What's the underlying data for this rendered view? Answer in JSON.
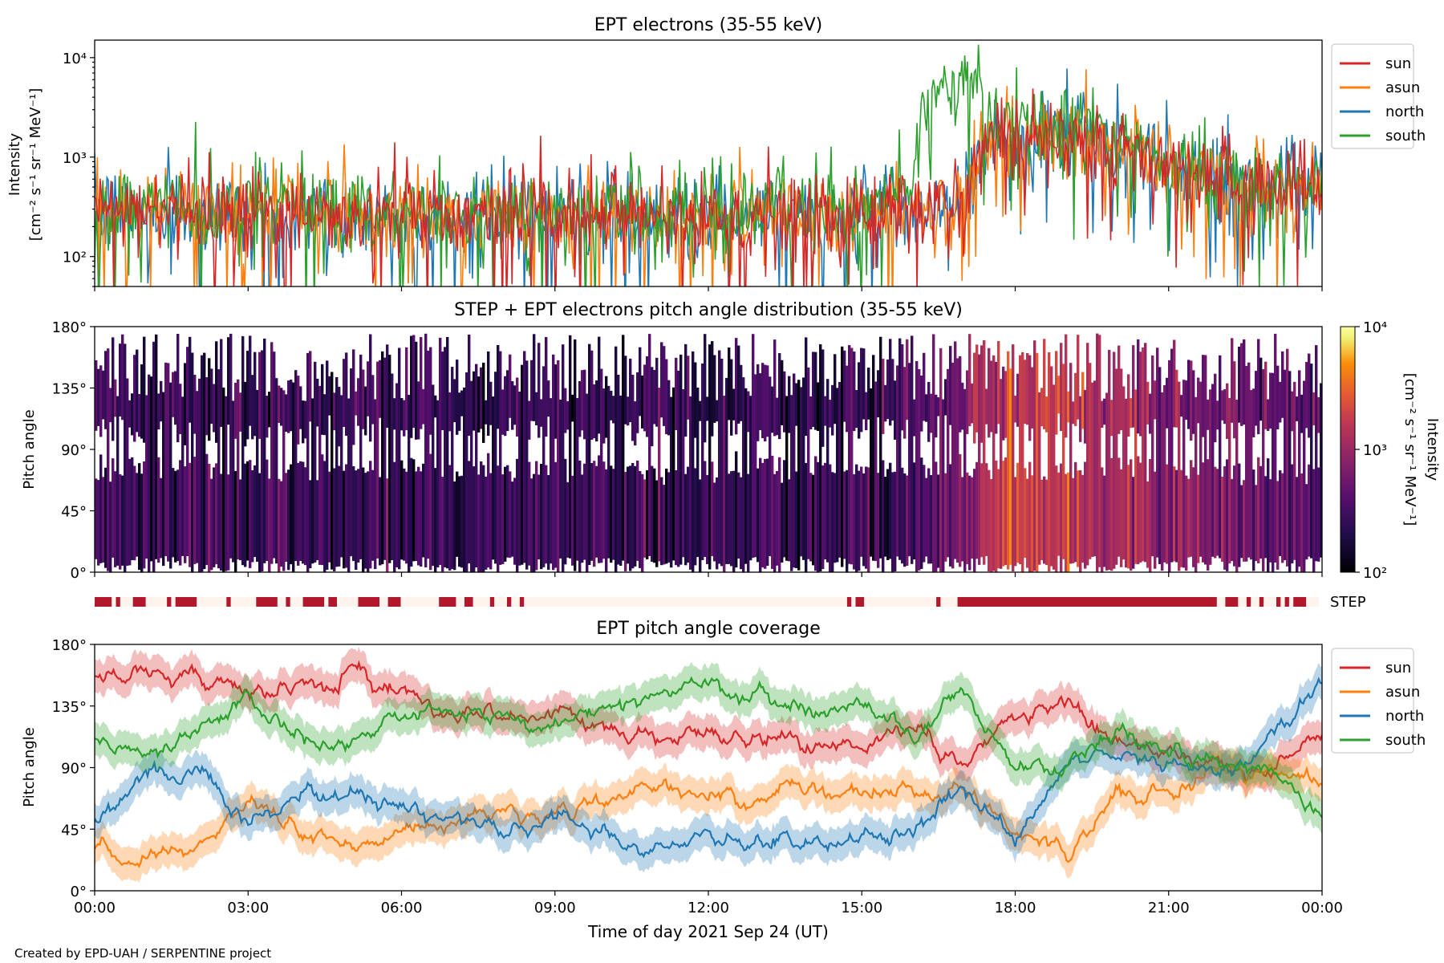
{
  "footer": {
    "credit": "Created by EPD-UAH / SERPENTINE project"
  },
  "colors": {
    "sun": "#d62728",
    "asun": "#ff7f0e",
    "north": "#1f77b4",
    "south": "#2ca02c",
    "step_on": "#b2182b",
    "step_off": "#fff3ee"
  },
  "chart_data": [
    {
      "id": "panel1",
      "type": "line",
      "title": "EPT electrons (35-55 keV)",
      "ylabel": [
        "Intensity",
        "[cm⁻² s⁻¹ sr⁻¹ MeV⁻¹]"
      ],
      "yscale": "log",
      "ylim": [
        50,
        15000
      ],
      "yticks": [
        {
          "value": 100,
          "label": "10²"
        },
        {
          "value": 1000,
          "label": "10³"
        },
        {
          "value": 10000,
          "label": "10⁴"
        }
      ],
      "x": [
        "00:00",
        "01:30",
        "03:00",
        "04:30",
        "06:00",
        "07:30",
        "09:00",
        "10:30",
        "12:00",
        "13:30",
        "15:00",
        "16:00",
        "16:30",
        "17:00",
        "17:30",
        "18:00",
        "19:00",
        "20:00",
        "21:00",
        "22:00",
        "23:00",
        "24:00"
      ],
      "legend": "right",
      "series": [
        {
          "name": "sun",
          "values": [
            300,
            300,
            290,
            280,
            270,
            270,
            260,
            260,
            250,
            260,
            270,
            300,
            330,
            360,
            1500,
            1700,
            1800,
            1300,
            800,
            600,
            500,
            450
          ]
        },
        {
          "name": "asun",
          "values": [
            280,
            300,
            290,
            280,
            280,
            270,
            260,
            260,
            260,
            270,
            280,
            320,
            350,
            380,
            1400,
            1600,
            1700,
            1200,
            750,
            560,
            480,
            430
          ]
        },
        {
          "name": "north",
          "values": [
            270,
            280,
            270,
            260,
            250,
            250,
            250,
            250,
            250,
            255,
            265,
            300,
            320,
            340,
            1300,
            1500,
            1700,
            1300,
            800,
            600,
            500,
            450
          ]
        },
        {
          "name": "south",
          "values": [
            330,
            330,
            320,
            300,
            300,
            290,
            280,
            280,
            280,
            290,
            300,
            500,
            4500,
            5500,
            2800,
            2300,
            1900,
            1400,
            850,
            620,
            520,
            460
          ]
        }
      ]
    },
    {
      "id": "panel2",
      "type": "heatmap",
      "title": "STEP + EPT electrons pitch angle distribution (35-55 keV)",
      "ylabel": "Pitch angle",
      "ylim": [
        0,
        180
      ],
      "yticks": [
        {
          "value": 0,
          "label": "0°"
        },
        {
          "value": 45,
          "label": "45°"
        },
        {
          "value": 90,
          "label": "90°"
        },
        {
          "value": 135,
          "label": "135°"
        },
        {
          "value": 180,
          "label": "180°"
        }
      ],
      "colorbar": {
        "label": "Intensity",
        "unit": "[cm⁻² s⁻¹ sr⁻¹ MeV⁻¹]",
        "scale": "log",
        "range": [
          100,
          10000
        ],
        "ticks": [
          {
            "value": 100,
            "label": "10²"
          },
          {
            "value": 1000,
            "label": "10³"
          },
          {
            "value": 10000,
            "label": "10⁴"
          }
        ]
      },
      "x": [
        "00:00",
        "01:30",
        "03:00",
        "04:30",
        "06:00",
        "07:30",
        "09:00",
        "10:30",
        "12:00",
        "13:30",
        "15:00",
        "16:30",
        "17:00",
        "17:30",
        "18:00",
        "19:00",
        "20:00",
        "21:00",
        "22:00",
        "23:00",
        "24:00"
      ],
      "values": [
        300,
        290,
        280,
        270,
        265,
        260,
        255,
        255,
        255,
        260,
        270,
        350,
        500,
        1500,
        1700,
        1800,
        1200,
        800,
        600,
        480,
        440
      ]
    },
    {
      "id": "step-bar",
      "type": "bar",
      "label": "STEP",
      "x_range": [
        "00:00",
        "24:00"
      ],
      "on_intervals": [
        [
          "00:00",
          "00:20"
        ],
        [
          "00:25",
          "00:30"
        ],
        [
          "00:45",
          "01:00"
        ],
        [
          "01:25",
          "01:30"
        ],
        [
          "01:35",
          "02:00"
        ],
        [
          "02:35",
          "02:40"
        ],
        [
          "03:10",
          "03:35"
        ],
        [
          "03:45",
          "03:50"
        ],
        [
          "04:05",
          "04:30"
        ],
        [
          "04:35",
          "04:45"
        ],
        [
          "05:10",
          "05:35"
        ],
        [
          "05:45",
          "06:00"
        ],
        [
          "06:45",
          "07:05"
        ],
        [
          "07:15",
          "07:25"
        ],
        [
          "07:45",
          "07:50"
        ],
        [
          "08:05",
          "08:10"
        ],
        [
          "08:20",
          "08:25"
        ],
        [
          "14:45",
          "14:50"
        ],
        [
          "14:55",
          "15:05"
        ],
        [
          "16:30",
          "16:35"
        ],
        [
          "16:55",
          "22:00"
        ],
        [
          "22:10",
          "22:25"
        ],
        [
          "22:35",
          "22:40"
        ],
        [
          "22:50",
          "22:55"
        ],
        [
          "23:10",
          "23:15"
        ],
        [
          "23:20",
          "23:25"
        ],
        [
          "23:30",
          "23:45"
        ]
      ]
    },
    {
      "id": "panel3",
      "type": "line",
      "title": "EPT pitch angle coverage",
      "ylabel": "Pitch angle",
      "xlabel": "Time of day 2021 Sep 24 (UT)",
      "ylim": [
        0,
        180
      ],
      "yticks": [
        {
          "value": 0,
          "label": "0°"
        },
        {
          "value": 45,
          "label": "45°"
        },
        {
          "value": 90,
          "label": "90°"
        },
        {
          "value": 135,
          "label": "135°"
        },
        {
          "value": 180,
          "label": "180°"
        }
      ],
      "xticks": [
        "00:00",
        "03:00",
        "06:00",
        "09:00",
        "12:00",
        "15:00",
        "18:00",
        "21:00",
        "00:00"
      ],
      "x": [
        "00:00",
        "01:00",
        "02:00",
        "03:00",
        "04:00",
        "05:00",
        "06:00",
        "07:00",
        "08:00",
        "09:00",
        "10:00",
        "11:00",
        "12:00",
        "13:00",
        "14:00",
        "15:00",
        "16:00",
        "17:00",
        "18:00",
        "19:00",
        "20:00",
        "21:00",
        "22:00",
        "23:00",
        "24:00"
      ],
      "legend": "right",
      "band_halfwidth": 12,
      "series": [
        {
          "name": "sun",
          "values": [
            160,
            160,
            155,
            145,
            150,
            160,
            145,
            130,
            125,
            125,
            120,
            115,
            110,
            115,
            110,
            110,
            115,
            95,
            125,
            135,
            110,
            100,
            95,
            90,
            110
          ]
        },
        {
          "name": "asun",
          "values": [
            30,
            25,
            35,
            70,
            40,
            35,
            45,
            50,
            55,
            55,
            65,
            70,
            75,
            70,
            75,
            70,
            70,
            80,
            45,
            25,
            70,
            75,
            85,
            85,
            80
          ]
        },
        {
          "name": "north",
          "values": [
            60,
            80,
            90,
            50,
            70,
            70,
            60,
            55,
            45,
            55,
            40,
            30,
            40,
            35,
            40,
            40,
            40,
            80,
            35,
            90,
            100,
            95,
            85,
            110,
            150
          ]
        },
        {
          "name": "south",
          "values": [
            110,
            100,
            120,
            140,
            110,
            110,
            125,
            130,
            130,
            125,
            135,
            145,
            150,
            140,
            130,
            140,
            115,
            145,
            90,
            90,
            120,
            100,
            95,
            80,
            50
          ]
        }
      ]
    }
  ]
}
